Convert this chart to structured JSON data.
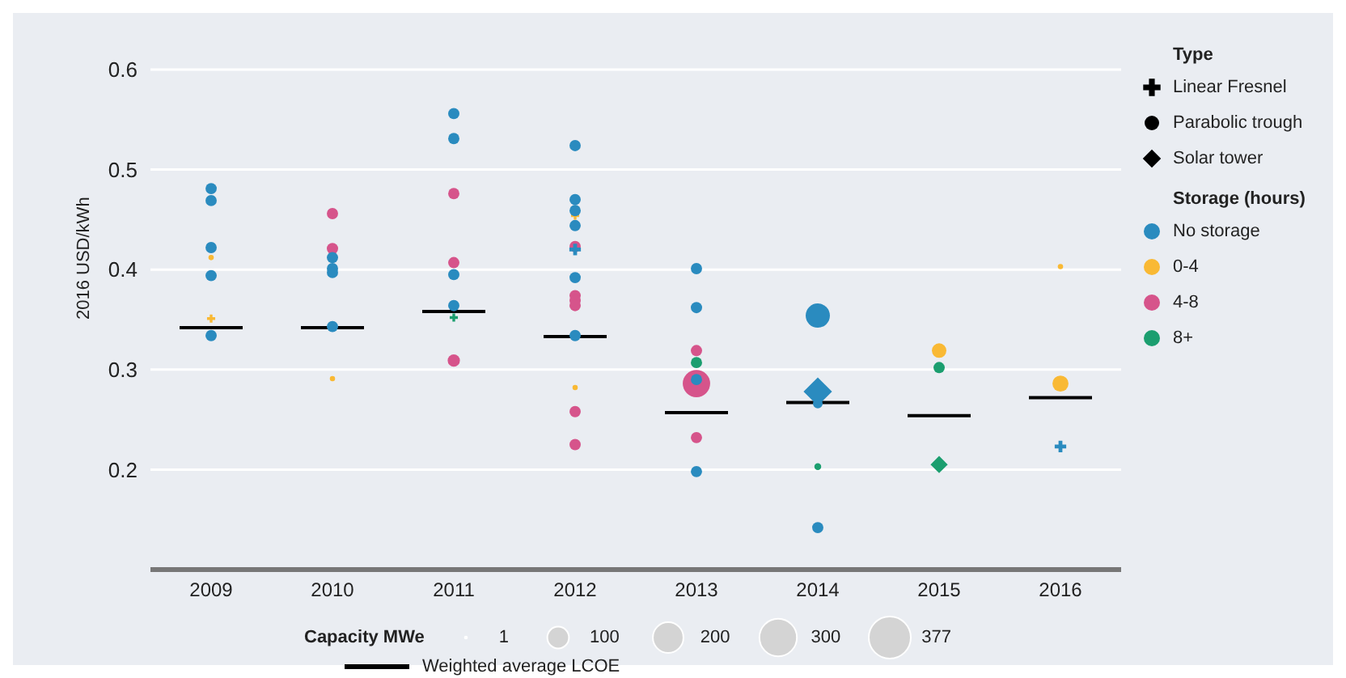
{
  "chart_data": {
    "type": "bubble",
    "ylabel": "2016 USD/kWh",
    "legend_title": "Storage (hours)",
    "annotations": [
      "Type",
      "Linear Fresnel",
      "Parabolic trough",
      "Solar tower",
      "Capacity MWe"
    ],
    "xlim": [
      2008.5,
      2016.5
    ],
    "xticks": [
      2009,
      2010,
      2011,
      2012,
      2013,
      2014,
      2015,
      2016
    ],
    "ylim": [
      0.1,
      0.6
    ],
    "yticks": [
      0.2,
      0.3,
      0.4,
      0.5,
      0.6
    ],
    "grid": "y",
    "legend": "right",
    "size_legend": [
      1,
      100,
      200,
      300,
      377
    ],
    "series": [
      {
        "name": "No storage",
        "color": "#2a8bbf",
        "marker": "circle",
        "x": [
          2009,
          2009,
          2009,
          2009,
          2009,
          2010,
          2010,
          2010,
          2010,
          2011,
          2011,
          2011,
          2011,
          2012,
          2012,
          2012,
          2012,
          2012,
          2012,
          2013,
          2013,
          2013,
          2013,
          2014,
          2014,
          2014
        ],
        "values": [
          0.481,
          0.469,
          0.422,
          0.394,
          0.334,
          0.412,
          0.401,
          0.397,
          0.343,
          0.556,
          0.531,
          0.395,
          0.364,
          0.524,
          0.47,
          0.459,
          0.444,
          0.392,
          0.334,
          0.401,
          0.362,
          0.29,
          0.198,
          0.354,
          0.266,
          0.142
        ],
        "sizes": [
          27,
          27,
          27,
          27,
          27,
          27,
          27,
          27,
          27,
          27,
          27,
          27,
          27,
          27,
          27,
          27,
          27,
          27,
          27,
          27,
          27,
          27,
          27,
          125,
          20,
          27
        ]
      },
      {
        "color": "#2a8bbf",
        "marker": "diamond",
        "x": [
          2014
        ],
        "values": [
          0.278
        ],
        "sizes": [
          110
        ]
      },
      {
        "color": "#2a8bbf",
        "marker": "cross",
        "x": [
          2012,
          2016
        ],
        "values": [
          0.42,
          0.223
        ],
        "sizes": [
          20,
          20
        ]
      },
      {
        "name": "0-4",
        "color": "#f9b934",
        "marker": "circle",
        "x": [
          2009,
          2010,
          2012,
          2015,
          2016,
          2016
        ],
        "values": [
          0.412,
          0.291,
          0.282,
          0.319,
          0.286,
          0.403
        ],
        "sizes": [
          6,
          6,
          6,
          45,
          55,
          6
        ]
      },
      {
        "color": "#f9b934",
        "marker": "cross",
        "x": [
          2009,
          2012
        ],
        "values": [
          0.351,
          0.454
        ],
        "sizes": [
          10,
          10
        ]
      },
      {
        "name": "4-8",
        "color": "#d6548b",
        "marker": "circle",
        "x": [
          2010,
          2010,
          2011,
          2011,
          2011,
          2012,
          2012,
          2012,
          2012,
          2012,
          2012,
          2013,
          2013,
          2013
        ],
        "values": [
          0.456,
          0.421,
          0.476,
          0.407,
          0.309,
          0.423,
          0.374,
          0.369,
          0.364,
          0.258,
          0.225,
          0.319,
          0.286,
          0.232
        ],
        "sizes": [
          27,
          27,
          27,
          27,
          32,
          27,
          27,
          27,
          27,
          27,
          27,
          27,
          160,
          27
        ]
      },
      {
        "name": "8+",
        "color": "#1b9e6f",
        "marker": "circle",
        "x": [
          2013,
          2014,
          2015
        ],
        "values": [
          0.307,
          0.203,
          0.302
        ],
        "sizes": [
          27,
          10,
          27
        ]
      },
      {
        "color": "#1b9e6f",
        "marker": "cross",
        "x": [
          2011
        ],
        "values": [
          0.352
        ],
        "sizes": [
          10
        ]
      },
      {
        "color": "#1b9e6f",
        "marker": "diamond",
        "x": [
          2015
        ],
        "values": [
          0.205
        ],
        "sizes": [
          40
        ]
      },
      {
        "name": "Weighted average LCOE",
        "type": "line",
        "color": "#000000",
        "line_style": "solid",
        "x": [
          2008.74,
          2009.26,
          2009.5,
          2009.74,
          2010.26,
          2010.5,
          2010.74,
          2011.26,
          2011.5,
          2011.74,
          2012.26,
          2012.5,
          2012.74,
          2013.26,
          2013.5,
          2013.74,
          2014.26,
          2014.5,
          2014.74,
          2015.26,
          2015.5,
          2015.74,
          2016.26
        ],
        "values": [
          0.342,
          0.342,
          null,
          0.342,
          0.342,
          null,
          0.358,
          0.358,
          null,
          0.333,
          0.333,
          null,
          0.257,
          0.257,
          null,
          0.267,
          0.267,
          null,
          0.254,
          0.254,
          null,
          0.272,
          0.272
        ]
      }
    ]
  }
}
